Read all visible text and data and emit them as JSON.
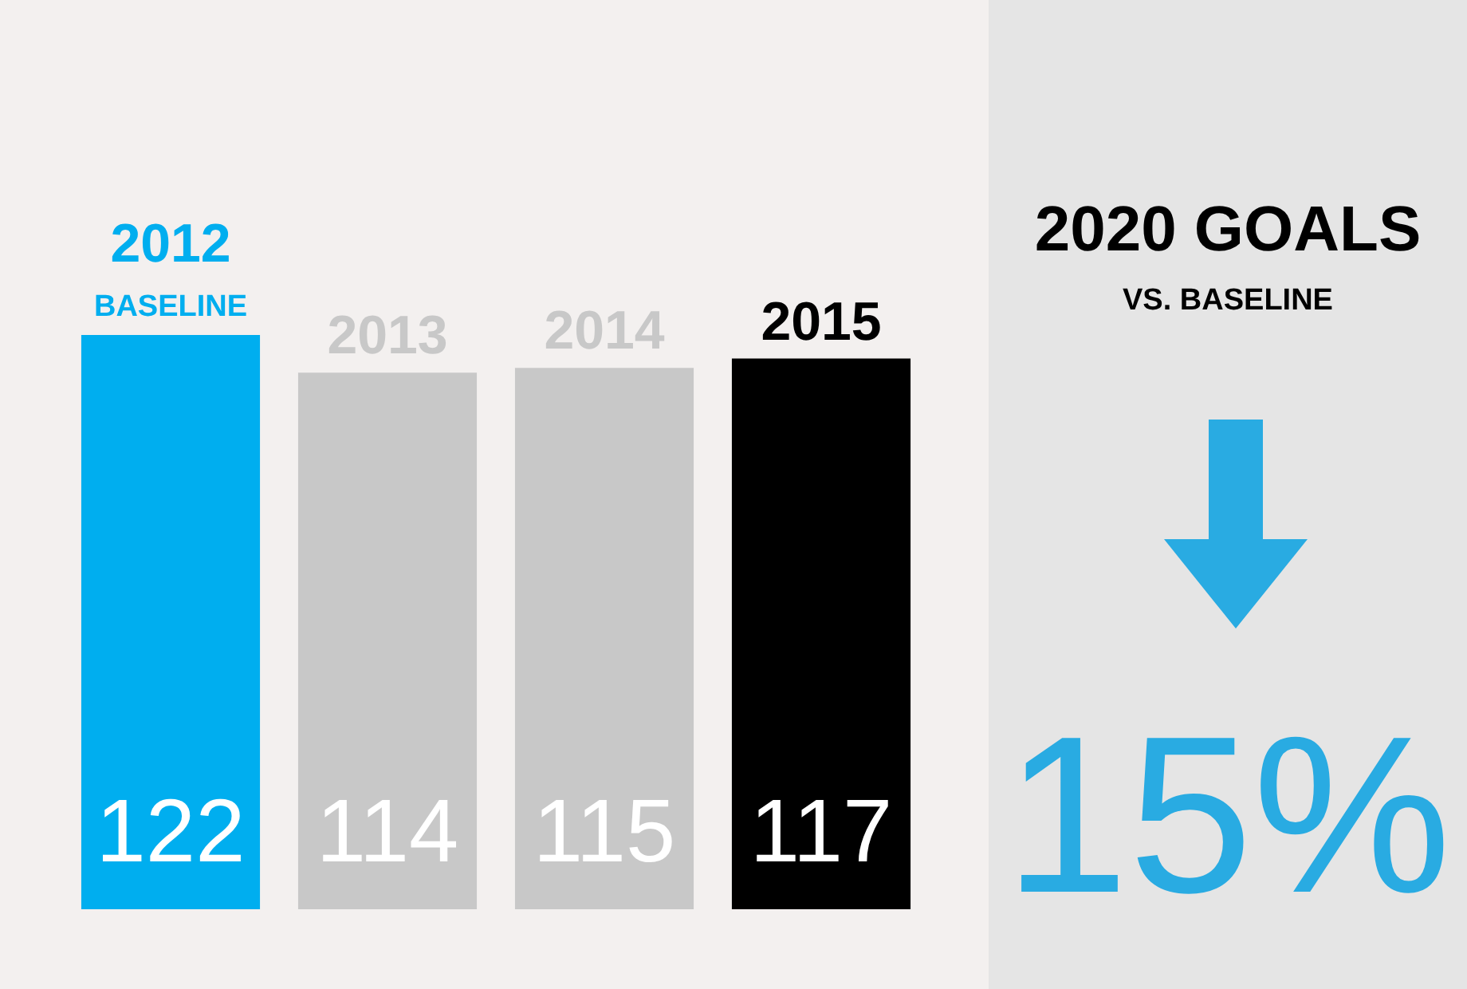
{
  "chart_data": [
    {
      "type": "bar",
      "categories": [
        "2012",
        "2013",
        "2014",
        "2015"
      ],
      "values": [
        122,
        114,
        115,
        117
      ],
      "colors": [
        "#00aeef",
        "#c8c8c8",
        "#c8c8c8",
        "#000000"
      ],
      "data_labels": true,
      "annotations": [
        "BASELINE"
      ]
    },
    {
      "type": "other",
      "title": "2020 GOALS",
      "subtitle": "VS. BASELINE",
      "annotations": [
        "15%"
      ]
    }
  ]
}
